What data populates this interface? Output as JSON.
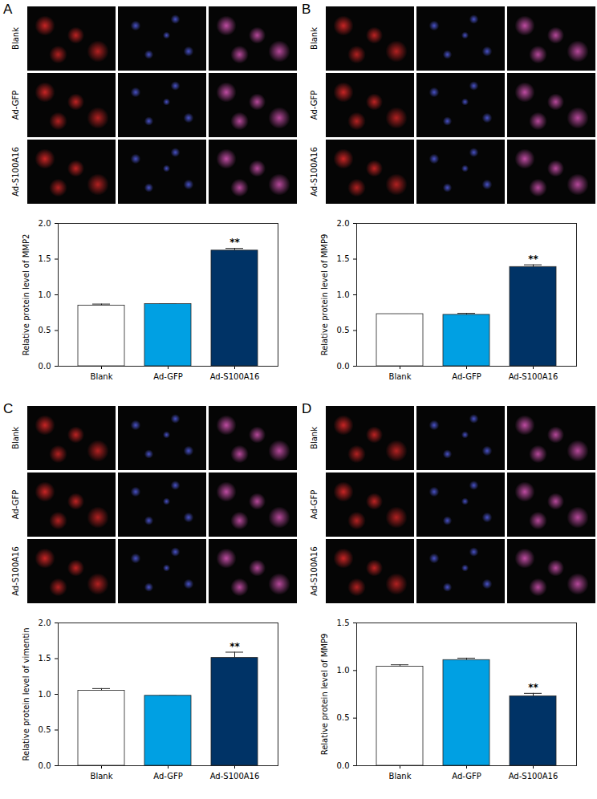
{
  "chart_data": [
    {
      "type": "bar",
      "panel": "A",
      "image_labels": [
        "Blank",
        "Ad-GFP",
        "Ad-S100A16"
      ],
      "y_label": "Relative protein level of MMP2",
      "categories": [
        "Blank",
        "Ad-GFP",
        "Ad-S100A16"
      ],
      "values": [
        0.85,
        0.87,
        1.62
      ],
      "errors": [
        0.02,
        0.0,
        0.03
      ],
      "colors": [
        "#ffffff",
        "#00a0e3",
        "#003366"
      ],
      "annotations": [
        {
          "category": "Ad-S100A16",
          "text": "**"
        }
      ],
      "ylim": [
        0,
        2
      ],
      "yticks": [
        {
          "value": 0,
          "label": "0.0"
        },
        {
          "value": 0.5,
          "label": "0.5"
        },
        {
          "value": 1,
          "label": "1.0"
        },
        {
          "value": 1.5,
          "label": "1.5"
        },
        {
          "value": 2,
          "label": "2.0"
        }
      ]
    },
    {
      "type": "bar",
      "panel": "B",
      "image_labels": [
        "Blank",
        "Ad-GFP",
        "Ad-S100A16"
      ],
      "y_label": "Relative protein level of MMP9",
      "categories": [
        "Blank",
        "Ad-GFP",
        "Ad-S100A16"
      ],
      "values": [
        0.73,
        0.72,
        1.39
      ],
      "errors": [
        0.0,
        0.02,
        0.03
      ],
      "colors": [
        "#ffffff",
        "#00a0e3",
        "#003366"
      ],
      "annotations": [
        {
          "category": "Ad-S100A16",
          "text": "**"
        }
      ],
      "ylim": [
        0,
        2
      ],
      "yticks": [
        {
          "value": 0,
          "label": "0.0"
        },
        {
          "value": 0.5,
          "label": "0.5"
        },
        {
          "value": 1,
          "label": "1.0"
        },
        {
          "value": 1.5,
          "label": "1.5"
        },
        {
          "value": 2,
          "label": "2.0"
        }
      ]
    },
    {
      "type": "bar",
      "panel": "C",
      "image_labels": [
        "Blank",
        "Ad-GFP",
        "Ad-S100A16"
      ],
      "y_label": "Relative protein level of vimentin",
      "categories": [
        "Blank",
        "Ad-GFP",
        "Ad-S100A16"
      ],
      "values": [
        1.05,
        0.98,
        1.51
      ],
      "errors": [
        0.03,
        0.0,
        0.08
      ],
      "colors": [
        "#ffffff",
        "#00a0e3",
        "#003366"
      ],
      "annotations": [
        {
          "category": "Ad-S100A16",
          "text": "**"
        }
      ],
      "ylim": [
        0,
        2
      ],
      "yticks": [
        {
          "value": 0,
          "label": "0.0"
        },
        {
          "value": 0.5,
          "label": "0.5"
        },
        {
          "value": 1,
          "label": "1.0"
        },
        {
          "value": 1.5,
          "label": "1.5"
        },
        {
          "value": 2,
          "label": "2.0"
        }
      ]
    },
    {
      "type": "bar",
      "panel": "D",
      "image_labels": [
        "Blank",
        "Ad-GFP",
        "Ad-S100A16"
      ],
      "y_label": "Relative protein level of MMP9",
      "categories": [
        "Blank",
        "Ad-GFP",
        "Ad-S100A16"
      ],
      "values": [
        1.04,
        1.11,
        0.73
      ],
      "errors": [
        0.02,
        0.02,
        0.03
      ],
      "colors": [
        "#ffffff",
        "#00a0e3",
        "#003366"
      ],
      "annotations": [
        {
          "category": "Ad-S100A16",
          "text": "**"
        }
      ],
      "ylim": [
        0,
        1.5
      ],
      "yticks": [
        {
          "value": 0,
          "label": "0.0"
        },
        {
          "value": 0.5,
          "label": "0.5"
        },
        {
          "value": 1,
          "label": "1.0"
        },
        {
          "value": 1.5,
          "label": "1.5"
        }
      ]
    }
  ]
}
